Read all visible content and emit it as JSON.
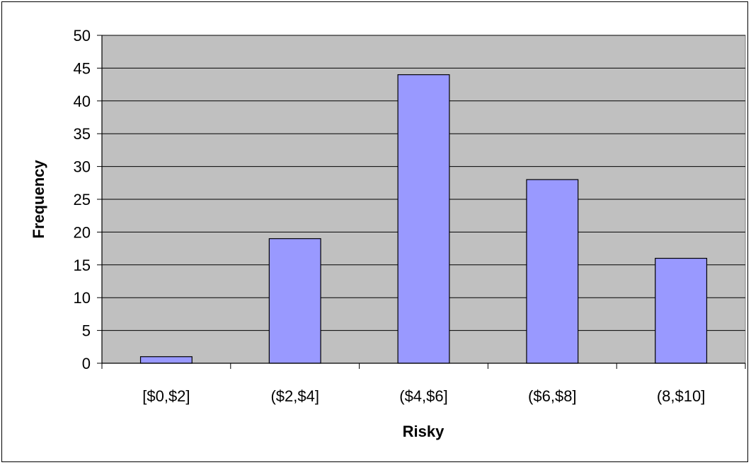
{
  "chart_data": {
    "type": "bar",
    "title": "",
    "xlabel": "Risky",
    "ylabel": "Frequency",
    "categories": [
      "[$0,$2]",
      "($2,$4]",
      "($4,$6]",
      "($6,$8]",
      "(8,$10]"
    ],
    "values": [
      1,
      19,
      44,
      28,
      16
    ],
    "ylim": [
      0,
      50
    ],
    "ytick_step": 5,
    "grid": true,
    "legend": "none",
    "colors": {
      "plot_background": "#c0c0c0",
      "bar_fill": "#9999ff",
      "bar_stroke": "#000000",
      "gridline": "#000000"
    }
  }
}
